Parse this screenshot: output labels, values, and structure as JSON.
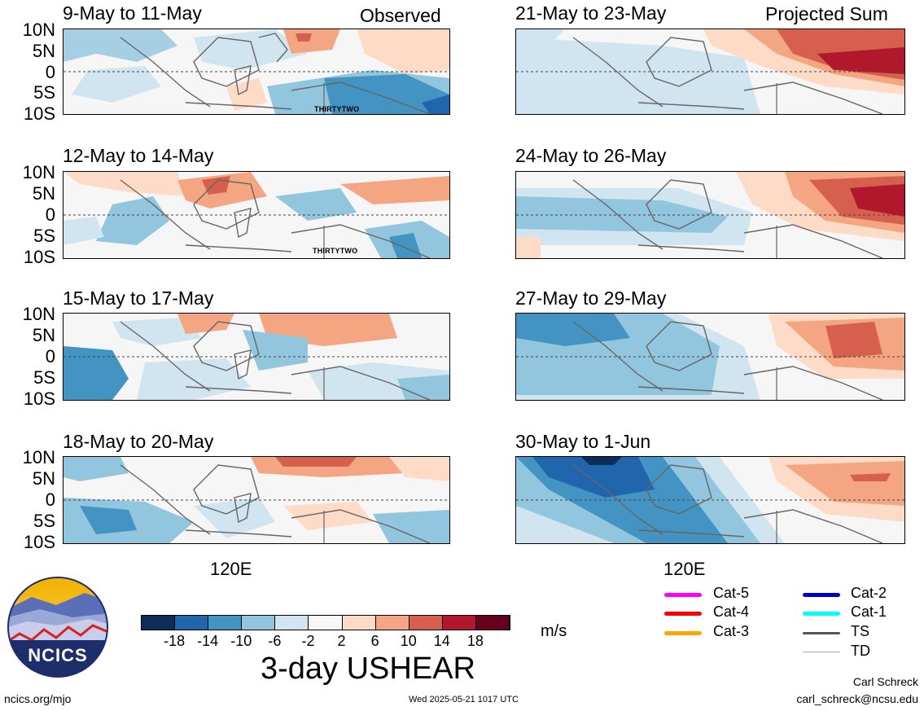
{
  "columns": {
    "left_label": "Observed",
    "right_label": "Projected Sum"
  },
  "panels_left": [
    {
      "title": "9-May to 11-May",
      "storm": "THIRTYTWO"
    },
    {
      "title": "12-May to 14-May",
      "storm": "THIRTYTWO"
    },
    {
      "title": "15-May to 17-May",
      "storm": ""
    },
    {
      "title": "18-May to 20-May",
      "storm": ""
    }
  ],
  "panels_right": [
    {
      "title": "21-May to 23-May"
    },
    {
      "title": "24-May to 26-May"
    },
    {
      "title": "27-May to 29-May"
    },
    {
      "title": "30-May to 1-Jun"
    }
  ],
  "y_ticks": [
    "10N",
    "5N",
    "0",
    "5S",
    "10S"
  ],
  "x_tick": "120E",
  "colorbar": {
    "colors": [
      "#0b2e59",
      "#2166ac",
      "#4393c3",
      "#92c5de",
      "#d1e5f0",
      "#f7f7f7",
      "#fddbc7",
      "#f4a582",
      "#d6604d",
      "#b2182b",
      "#67001f"
    ],
    "labels": [
      "-18",
      "-14",
      "-10",
      "-6",
      "-2",
      "2",
      "6",
      "10",
      "14",
      "18"
    ],
    "units": "m/s",
    "variable": "3-day USHEAR"
  },
  "storm_legend": [
    {
      "label": "Cat-5",
      "color": "#ff00ff"
    },
    {
      "label": "Cat-4",
      "color": "#ff0000"
    },
    {
      "label": "Cat-3",
      "color": "#ffa500"
    },
    {
      "label": "Cat-2",
      "color": "#0000cc"
    },
    {
      "label": "Cat-1",
      "color": "#00ffff"
    },
    {
      "label": "TS",
      "color": "#555555"
    },
    {
      "label": "TD",
      "color": "#aaaaaa"
    }
  ],
  "logo": {
    "text": "NCICS"
  },
  "footer": {
    "url": "ncics.org/mjo",
    "timestamp": "Wed 2025-05-21 1017 UTC",
    "author": "Carl Schreck",
    "email": "carl_schreck@ncsu.edu"
  }
}
